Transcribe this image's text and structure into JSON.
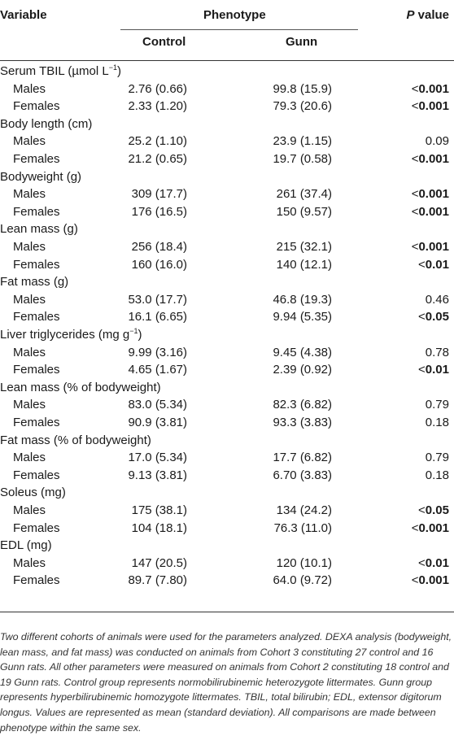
{
  "header": {
    "variable": "Variable",
    "phenotype": "Phenotype",
    "pvalue_italic": "P",
    "pvalue_rest": " value",
    "control": "Control",
    "gunn": "Gunn"
  },
  "groups": [
    {
      "label": "Serum TBIL (µmol L",
      "sup": "−1",
      "suffix": ")",
      "rows": [
        {
          "sex": "Males",
          "control": "2.76 (0.66)",
          "gunn": "99.8 (15.9)",
          "lt": "<",
          "p": "0.001",
          "bold": true
        },
        {
          "sex": "Females",
          "control": "2.33 (1.20)",
          "gunn": "79.3 (20.6)",
          "lt": "<",
          "p": "0.001",
          "bold": true
        }
      ]
    },
    {
      "label": "Body length (cm)",
      "rows": [
        {
          "sex": "Males",
          "control": "25.2 (1.10)",
          "gunn": "23.9 (1.15)",
          "lt": "",
          "p": "0.09",
          "bold": false
        },
        {
          "sex": "Females",
          "control": "21.2 (0.65)",
          "gunn": "19.7 (0.58)",
          "lt": "<",
          "p": "0.001",
          "bold": true
        }
      ]
    },
    {
      "label": "Bodyweight (g)",
      "rows": [
        {
          "sex": "Males",
          "control": "309 (17.7)",
          "gunn": "261 (37.4)",
          "lt": "<",
          "p": "0.001",
          "bold": true
        },
        {
          "sex": "Females",
          "control": "176 (16.5)",
          "gunn": "150 (9.57)",
          "lt": "<",
          "p": "0.001",
          "bold": true
        }
      ]
    },
    {
      "label": "Lean mass (g)",
      "rows": [
        {
          "sex": "Males",
          "control": "256 (18.4)",
          "gunn": "215 (32.1)",
          "lt": "<",
          "p": "0.001",
          "bold": true
        },
        {
          "sex": "Females",
          "control": "160 (16.0)",
          "gunn": "140 (12.1)",
          "lt": "<",
          "p": "0.01",
          "bold": true
        }
      ]
    },
    {
      "label": "Fat mass (g)",
      "rows": [
        {
          "sex": "Males",
          "control": "53.0 (17.7)",
          "gunn": "46.8 (19.3)",
          "lt": "",
          "p": "0.46",
          "bold": false
        },
        {
          "sex": "Females",
          "control": "16.1 (6.65)",
          "gunn": "9.94 (5.35)",
          "lt": "<",
          "p": "0.05",
          "bold": true
        }
      ]
    },
    {
      "label": "Liver triglycerides (mg g",
      "sup": "−1",
      "suffix": ")",
      "rows": [
        {
          "sex": "Males",
          "control": "9.99 (3.16)",
          "gunn": "9.45 (4.38)",
          "lt": "",
          "p": "0.78",
          "bold": false
        },
        {
          "sex": "Females",
          "control": "4.65 (1.67)",
          "gunn": "2.39 (0.92)",
          "lt": "<",
          "p": "0.01",
          "bold": true
        }
      ]
    },
    {
      "label": "Lean mass (% of bodyweight)",
      "rows": [
        {
          "sex": "Males",
          "control": "83.0 (5.34)",
          "gunn": "82.3 (6.82)",
          "lt": "",
          "p": "0.79",
          "bold": false
        },
        {
          "sex": "Females",
          "control": "90.9 (3.81)",
          "gunn": "93.3 (3.83)",
          "lt": "",
          "p": "0.18",
          "bold": false
        }
      ]
    },
    {
      "label": "Fat mass (% of bodyweight)",
      "rows": [
        {
          "sex": "Males",
          "control": "17.0 (5.34)",
          "gunn": "17.7 (6.82)",
          "lt": "",
          "p": "0.79",
          "bold": false
        },
        {
          "sex": "Females",
          "control": "9.13 (3.81)",
          "gunn": "6.70 (3.83)",
          "lt": "",
          "p": "0.18",
          "bold": false
        }
      ]
    },
    {
      "label": "Soleus (mg)",
      "rows": [
        {
          "sex": "Males",
          "control": "175 (38.1)",
          "gunn": "134 (24.2)",
          "lt": "<",
          "p": "0.05",
          "bold": true
        },
        {
          "sex": "Females",
          "control": "104 (18.1)",
          "gunn": "76.3 (11.0)",
          "lt": "<",
          "p": "0.001",
          "bold": true
        }
      ]
    },
    {
      "label": "EDL (mg)",
      "rows": [
        {
          "sex": "Males",
          "control": "147 (20.5)",
          "gunn": "120 (10.1)",
          "lt": "<",
          "p": "0.01",
          "bold": true
        },
        {
          "sex": "Females",
          "control": "89.7 (7.80)",
          "gunn": "64.0 (9.72)",
          "lt": "<",
          "p": "0.001",
          "bold": true
        }
      ]
    }
  ],
  "footnote": "Two different cohorts of animals were used for the parameters analyzed. DEXA analysis (bodyweight, lean mass, and fat mass) was conducted on animals from Cohort 3 constituting 27 control and 16 Gunn rats. All other parameters were measured on animals from Cohort 2 constituting 18 control and 19 Gunn rats. Control group represents normobilirubinemic heterozygote littermates. Gunn group represents hyperbilirubinemic homozygote littermates. TBIL, total bilirubin; EDL, extensor digitorum longus. Values are represented as mean (standard deviation). All comparisons are made between phenotype within the same sex."
}
